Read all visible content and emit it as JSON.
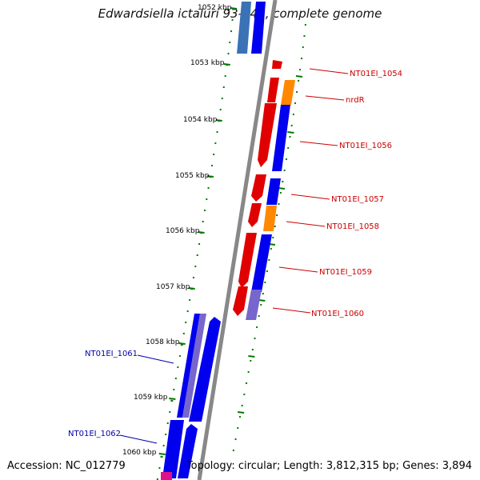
{
  "title": "Edwardsiella ictaluri 93-146, complete genome",
  "footer": {
    "accession": "Accession: NC_012779",
    "topology": "Topology: circular; Length: 3,812,315 bp; Genes: 3,894"
  },
  "colors": {
    "forward_cds": "#e00000",
    "reverse_cds": "#0000ee",
    "rna": "#ff8800",
    "pseudo_reverse": "#7766cc",
    "tick": "#007a00",
    "backbone": "#888888",
    "label_forward": "#cc0000",
    "label_reverse": "#0000aa"
  },
  "position_labels": [
    "1052 kbp",
    "1053 kbp",
    "1054 kbp",
    "1055 kbp",
    "1056 kbp",
    "1057 kbp",
    "1058 kbp",
    "1059 kbp",
    "1060 kbp"
  ],
  "gene_labels": {
    "forward": [
      "NT01EI_1054",
      "nrdR",
      "NT01EI_1056",
      "NT01EI_1057",
      "NT01EI_1058",
      "NT01EI_1059",
      "NT01EI_1060"
    ],
    "reverse": [
      "NT01EI_1061",
      "NT01EI_1062"
    ]
  }
}
